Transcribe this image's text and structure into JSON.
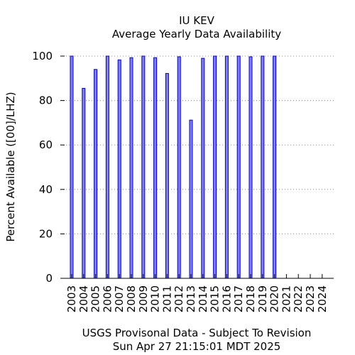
{
  "chart_data": {
    "type": "bar",
    "title": "IU KEV",
    "subtitle": "Average Yearly Data Availability",
    "ylabel": "Percent Available ([00]/LHZ)",
    "xlabel": "",
    "ylim": [
      0,
      100
    ],
    "yticks": [
      0,
      20,
      40,
      60,
      80,
      100
    ],
    "grid": "horizontal-dotted",
    "bar_color": "#7f7fff",
    "bar_edge_color": "#0000cc",
    "categories": [
      "2003",
      "2004",
      "2005",
      "2006",
      "2007",
      "2008",
      "2009",
      "2010",
      "2011",
      "2012",
      "2013",
      "2014",
      "2015",
      "2016",
      "2017",
      "2018",
      "2019",
      "2020",
      "2021",
      "2022",
      "2023",
      "2024"
    ],
    "values": [
      100,
      85.5,
      94,
      100,
      98.3,
      99.3,
      100,
      99.3,
      92.2,
      99.7,
      71.2,
      99,
      100,
      100,
      100,
      99.7,
      100,
      100,
      null,
      null,
      null,
      null
    ]
  },
  "footer": {
    "line1": "USGS Provisonal Data - Subject To Revision",
    "line2": "Sun Apr 27 21:15:01 MDT 2025"
  }
}
